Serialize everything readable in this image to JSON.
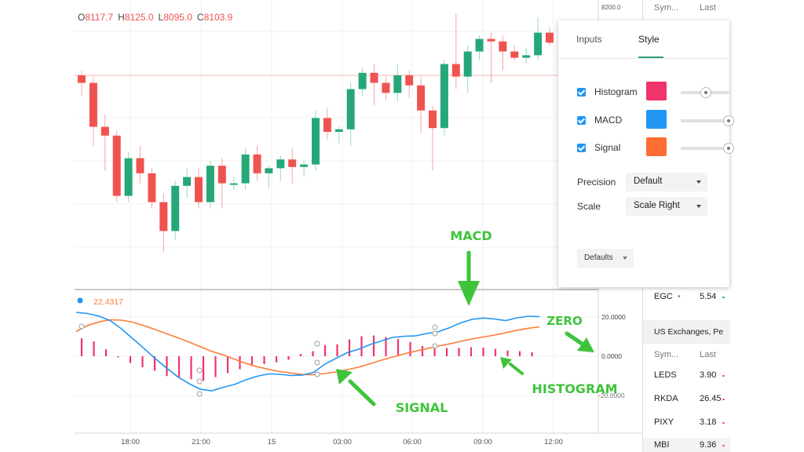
{
  "ohlc": {
    "o_label": "O",
    "o_value": "8117.7",
    "h_label": "H",
    "h_value": "8125.0",
    "l_label": "L",
    "l_value": "8095.0",
    "c_label": "C",
    "c_value": "8103.9"
  },
  "price_scale": {
    "top_label": "8200.0"
  },
  "indicator": {
    "label": "22.4317"
  },
  "macd_scale": [
    "20.0000",
    "0.0000",
    "-20.0000"
  ],
  "time_axis": [
    "18:00",
    "21:00",
    "15",
    "03:00",
    "06:00",
    "09:00",
    "12:00"
  ],
  "settings_dialog": {
    "tabs": [
      {
        "label": "Inputs",
        "active": false
      },
      {
        "label": "Style",
        "active": true
      }
    ],
    "plots": [
      {
        "label": "Histogram",
        "color": "#f0336b",
        "checked": true,
        "slider_value": 0.5
      },
      {
        "label": "MACD",
        "color": "#2196f3",
        "checked": true,
        "slider_value": 1.0
      },
      {
        "label": "Signal",
        "color": "#ff6d33",
        "checked": true,
        "slider_value": 1.0
      }
    ],
    "precision": {
      "label": "Precision",
      "value": "Default"
    },
    "scale": {
      "label": "Scale",
      "value": "Scale Right"
    },
    "defaults_label": "Defaults"
  },
  "watchlist": {
    "header": {
      "sym": "Sym...",
      "last": "Last"
    },
    "rows_top": [
      {
        "sym": "EGC",
        "last": "5.54",
        "dir_color": "#2aa87e"
      }
    ],
    "section": "US Exchanges, Pe",
    "section_header": {
      "sym": "Sym...",
      "last": "Last"
    },
    "rows": [
      {
        "sym": "LEDS",
        "last": "3.90",
        "dir_color": "#ef5350"
      },
      {
        "sym": "RKDA",
        "last": "26.45",
        "dir_color": "#ef5350"
      },
      {
        "sym": "PIXY",
        "last": "3.18",
        "dir_color": "#ef5350"
      },
      {
        "sym": "MBI",
        "last": "9.36",
        "dir_color": "#ef5350"
      }
    ]
  },
  "annotations": {
    "macd": "MACD",
    "zero": "ZERO",
    "signal": "SIGNAL",
    "histogram": "HISTOGRAM"
  },
  "colors": {
    "bull": "#26a778",
    "bear": "#ef5350",
    "macd_line": "#2196f3",
    "signal_line": "#ff7b3a",
    "histogram": "#f0336b",
    "annotation": "#3ec43a"
  },
  "chart_data": [
    {
      "type": "candlestick",
      "title": "",
      "candles": [
        [
          8166,
          8170,
          8150,
          8160
        ],
        [
          8160,
          8165,
          8110,
          8125
        ],
        [
          8125,
          8135,
          8090,
          8118
        ],
        [
          8118,
          8122,
          8065,
          8070
        ],
        [
          8070,
          8105,
          8065,
          8100
        ],
        [
          8100,
          8110,
          8080,
          8088
        ],
        [
          8088,
          8092,
          8060,
          8065
        ],
        [
          8065,
          8072,
          8025,
          8042
        ],
        [
          8042,
          8082,
          8035,
          8078
        ],
        [
          8078,
          8092,
          8068,
          8085
        ],
        [
          8085,
          8092,
          8060,
          8065
        ],
        [
          8065,
          8098,
          8060,
          8094
        ],
        [
          8094,
          8100,
          8060,
          8080
        ],
        [
          8080,
          8085,
          8075,
          8080
        ],
        [
          8080,
          8108,
          8075,
          8103
        ],
        [
          8103,
          8110,
          8082,
          8088
        ],
        [
          8088,
          8094,
          8076,
          8092
        ],
        [
          8092,
          8102,
          8082,
          8099
        ],
        [
          8099,
          8108,
          8080,
          8093
        ],
        [
          8093,
          8098,
          8085,
          8095
        ],
        [
          8095,
          8138,
          8090,
          8132
        ],
        [
          8132,
          8140,
          8115,
          8121
        ],
        [
          8121,
          8125,
          8112,
          8123
        ],
        [
          8123,
          8160,
          8110,
          8155
        ],
        [
          8155,
          8172,
          8150,
          8168
        ],
        [
          8168,
          8175,
          8142,
          8160
        ],
        [
          8160,
          8165,
          8146,
          8152
        ],
        [
          8152,
          8175,
          8145,
          8166
        ],
        [
          8166,
          8170,
          8148,
          8158
        ],
        [
          8158,
          8165,
          8120,
          8138
        ],
        [
          8138,
          8142,
          8090,
          8124
        ],
        [
          8124,
          8178,
          8118,
          8175
        ],
        [
          8175,
          8215,
          8155,
          8165
        ],
        [
          8165,
          8190,
          8152,
          8185
        ],
        [
          8185,
          8198,
          8178,
          8195
        ],
        [
          8195,
          8200,
          8160,
          8193
        ],
        [
          8193,
          8198,
          8170,
          8185
        ],
        [
          8185,
          8190,
          8178,
          8180
        ],
        [
          8180,
          8188,
          8176,
          8182
        ],
        [
          8182,
          8212,
          8178,
          8200
        ],
        [
          8200,
          8204,
          8190,
          8192
        ]
      ]
    },
    {
      "type": "line",
      "title": "",
      "series": [
        {
          "values": [
            22.4,
            21.8,
            20.5,
            18.2,
            14.0,
            9.0,
            4.0,
            -1.2,
            -6.0,
            -10.5,
            -14.0,
            -16.8,
            -17.6,
            -15.8,
            -14.4,
            -12.0,
            -10.2,
            -9.0,
            -9.2,
            -9.8,
            -9.6,
            -8.2,
            -4.0,
            -1.0,
            1.9,
            3.6,
            6.0,
            7.8,
            9.6,
            10.2,
            10.4,
            11.6,
            12.5,
            14.5,
            17.0,
            18.8,
            19.5,
            19.0,
            18.2,
            19.6,
            20.4,
            20.2
          ]
        },
        {
          "values": [
            12.6,
            15.7,
            17.5,
            18.6,
            18.4,
            17.4,
            15.6,
            13.6,
            11.5,
            9.4,
            7.2,
            4.8,
            2.5,
            0.7,
            -1.5,
            -3.6,
            -5.3,
            -6.6,
            -7.8,
            -8.5,
            -9.3,
            -9.4,
            -8.8,
            -8.0,
            -6.8,
            -5.5,
            -3.8,
            -2.0,
            -0.4,
            1.2,
            2.6,
            3.9,
            5.2,
            6.3,
            7.6,
            8.8,
            9.8,
            10.8,
            12.0,
            13.3,
            14.3,
            15.0
          ]
        }
      ]
    },
    {
      "type": "bar",
      "title": "",
      "values": [
        9.2,
        7.6,
        3.6,
        -0.6,
        -3.4,
        -5.6,
        -7.4,
        -10.1,
        -11.1,
        -11.7,
        -12.5,
        -10.6,
        -8.6,
        -6.6,
        -5.0,
        -4.0,
        -3.1,
        -1.8,
        1.2,
        2.6,
        5.7,
        6.1,
        8.6,
        10.2,
        10.6,
        9.8,
        8.8,
        7.3,
        5.2,
        4.6,
        4.2,
        4.3,
        4.6,
        4.4,
        3.8,
        3.0,
        2.6,
        2.0
      ]
    }
  ]
}
